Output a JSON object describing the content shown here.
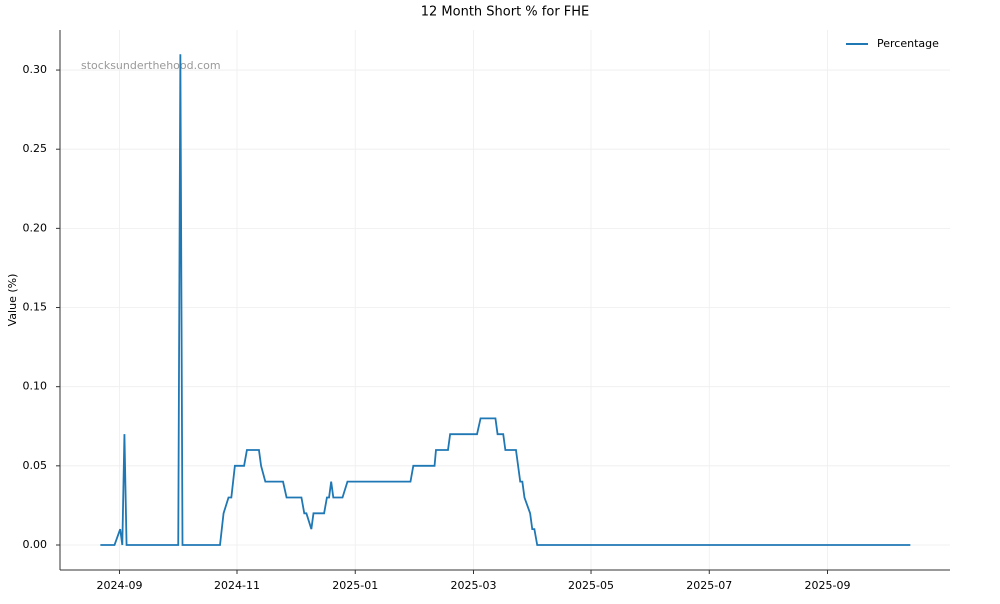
{
  "chart_data": {
    "type": "line",
    "title": "12 Month Short % for FHE",
    "y_label": "Value (%)",
    "watermark": "stocksunderthehood.com",
    "x": [
      2024.64,
      2024.66,
      2024.668,
      2024.671,
      2024.674,
      2024.677,
      2024.75,
      2024.753,
      2024.756,
      2024.809,
      2024.814,
      2024.821,
      2024.825,
      2024.83,
      2024.843,
      2024.847,
      2024.864,
      2024.867,
      2024.873,
      2024.898,
      2024.903,
      2024.924,
      2024.928,
      2024.931,
      2024.938,
      2024.941,
      2024.956,
      2024.96,
      2024.963,
      2024.966,
      2024.969,
      2024.982,
      2024.989,
      2025.078,
      2025.082,
      2025.112,
      2025.114,
      2025.131,
      2025.134,
      2025.172,
      2025.177,
      2025.198,
      2025.201,
      2025.209,
      2025.212,
      2025.227,
      2025.233,
      2025.236,
      2025.239,
      2025.247,
      2025.25,
      2025.253,
      2025.257,
      2025.784
    ],
    "series": [
      {
        "name": "Percentage",
        "color": "#1f77b4",
        "values": [
          0,
          0,
          0.01,
          0,
          0.07,
          0,
          0,
          0.31,
          0,
          0,
          0.02,
          0.03,
          0.03,
          0.05,
          0.05,
          0.06,
          0.06,
          0.05,
          0.04,
          0.04,
          0.03,
          0.03,
          0.02,
          0.02,
          0.01,
          0.02,
          0.02,
          0.03,
          0.03,
          0.04,
          0.03,
          0.03,
          0.04,
          0.04,
          0.05,
          0.05,
          0.06,
          0.06,
          0.07,
          0.07,
          0.08,
          0.08,
          0.07,
          0.07,
          0.06,
          0.06,
          0.04,
          0.04,
          0.03,
          0.02,
          0.01,
          0.01,
          0,
          0
        ]
      }
    ],
    "xlim": [
      2024.583,
      2025.84
    ],
    "ylim": [
      -0.0158,
      0.3253
    ],
    "xticks": [
      {
        "value": 2024.667,
        "label": "2024-09"
      },
      {
        "value": 2024.833,
        "label": "2024-11"
      },
      {
        "value": 2025.0,
        "label": "2025-01"
      },
      {
        "value": 2025.167,
        "label": "2025-03"
      },
      {
        "value": 2025.333,
        "label": "2025-05"
      },
      {
        "value": 2025.5,
        "label": "2025-07"
      },
      {
        "value": 2025.667,
        "label": "2025-09"
      }
    ],
    "yticks": [
      {
        "value": 0,
        "label": "0.00"
      },
      {
        "value": 0.05,
        "label": "0.05"
      },
      {
        "value": 0.1,
        "label": "0.10"
      },
      {
        "value": 0.15,
        "label": "0.15"
      },
      {
        "value": 0.2,
        "label": "0.20"
      },
      {
        "value": 0.25,
        "label": "0.25"
      },
      {
        "value": 0.3,
        "label": "0.30"
      }
    ],
    "grid": true,
    "legend": "upper right"
  }
}
